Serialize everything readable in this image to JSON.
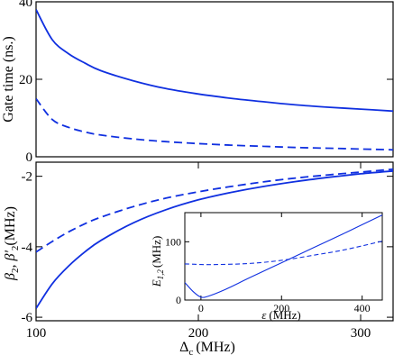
{
  "chart_data": [
    {
      "id": "top",
      "type": "line",
      "ylabel": "Gate time (ns.)",
      "xlim": [
        100,
        320
      ],
      "ylim": [
        0,
        40
      ],
      "yticks": [
        0,
        20,
        40
      ],
      "yticklabels": [
        "0",
        "20",
        "40"
      ],
      "series": [
        {
          "style": "solid",
          "x": [
            100,
            110,
            120,
            130,
            140,
            160,
            180,
            200,
            220,
            240,
            260,
            280,
            300,
            320
          ],
          "values": [
            38.0,
            30.2,
            26.6,
            24.2,
            22.2,
            19.6,
            17.6,
            16.2,
            15.1,
            14.2,
            13.4,
            12.8,
            12.3,
            11.8
          ]
        },
        {
          "style": "dashed",
          "x": [
            100,
            110,
            120,
            130,
            140,
            160,
            180,
            200,
            220,
            240,
            260,
            280,
            300,
            320
          ],
          "values": [
            15.0,
            9.6,
            7.6,
            6.4,
            5.6,
            4.6,
            3.9,
            3.4,
            3.0,
            2.7,
            2.4,
            2.2,
            2.0,
            1.8
          ]
        }
      ]
    },
    {
      "id": "bottom",
      "type": "line",
      "xlabel": "Δ",
      "xlabel_sub": "c",
      "xlabel_units": "(MHz)",
      "ylabel": "β",
      "ylabel_sub": "2",
      "ylabel_sep": ", ",
      "ylabel2": "β'",
      "ylabel2_sub": "2",
      "ylabel_units": "(MHz)",
      "xlim": [
        100,
        320
      ],
      "ylim": [
        -6.1,
        -1.6
      ],
      "xticks": [
        100,
        200,
        300
      ],
      "xticklabels": [
        "100",
        "200",
        "300"
      ],
      "yticks": [
        -6,
        -4,
        -2
      ],
      "yticklabels": [
        "-6",
        "-4",
        "-2"
      ],
      "series": [
        {
          "style": "solid",
          "x": [
            100,
            110,
            120,
            130,
            140,
            160,
            180,
            200,
            220,
            240,
            260,
            280,
            300,
            320
          ],
          "values": [
            -5.75,
            -5.05,
            -4.55,
            -4.15,
            -3.82,
            -3.32,
            -2.95,
            -2.67,
            -2.46,
            -2.29,
            -2.15,
            -2.03,
            -1.93,
            -1.85
          ]
        },
        {
          "style": "dashed",
          "x": [
            100,
            110,
            120,
            130,
            140,
            160,
            180,
            200,
            220,
            240,
            260,
            280,
            300,
            320
          ],
          "values": [
            -4.15,
            -3.85,
            -3.58,
            -3.35,
            -3.16,
            -2.86,
            -2.62,
            -2.44,
            -2.29,
            -2.16,
            -2.05,
            -1.96,
            -1.88,
            -1.8
          ]
        }
      ]
    },
    {
      "id": "inset",
      "type": "line",
      "xlabel": "ε",
      "xlabel_units": "(MHz)",
      "ylabel": "E",
      "ylabel_sub": "1,2",
      "ylabel_units": "(MHz)",
      "xlim": [
        -40,
        450
      ],
      "ylim": [
        0,
        150
      ],
      "xticks": [
        0,
        200,
        400
      ],
      "xticklabels": [
        "0",
        "200",
        "400"
      ],
      "yticks": [
        0,
        100
      ],
      "yticklabels": [
        "0",
        "100"
      ],
      "series": [
        {
          "style": "solid",
          "x": [
            -40,
            -20,
            0,
            20,
            60,
            120,
            200,
            280,
            360,
            450
          ],
          "values": [
            30,
            15,
            5,
            7,
            18,
            38,
            64,
            90,
            116,
            146
          ]
        },
        {
          "style": "dashed",
          "x": [
            -40,
            0,
            40,
            100,
            160,
            220,
            280,
            340,
            400,
            450
          ],
          "values": [
            62,
            61,
            61,
            62,
            65,
            70,
            77,
            84,
            93,
            101
          ]
        }
      ]
    }
  ]
}
